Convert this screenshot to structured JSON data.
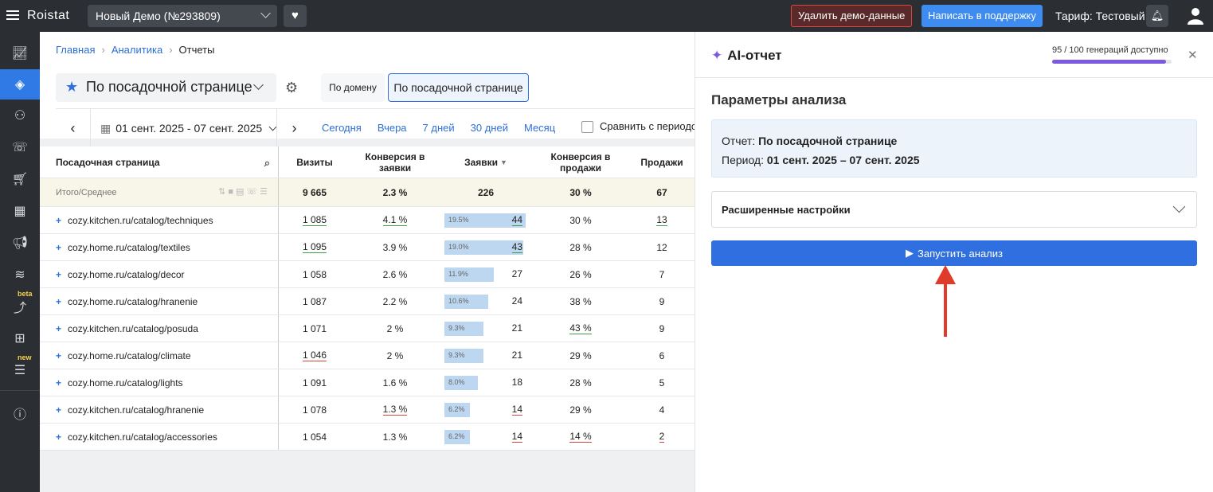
{
  "topbar": {
    "logo": "Roistat",
    "project": "Новый Демо (№293809)",
    "delete_demo": "Удалить демо-данные",
    "support": "Написать в поддержку",
    "tariff": "Тариф: Тестовый"
  },
  "sidebar": {
    "badges": {
      "beta": "beta",
      "new": "new"
    }
  },
  "breadcrumb": {
    "home": "Главная",
    "analytics": "Аналитика",
    "current": "Отчеты"
  },
  "report": {
    "selected": "По посадочной странице",
    "segments": [
      "По домену",
      "По посадочной странице"
    ]
  },
  "dates": {
    "range": "01 сент. 2025 - 07 сент. 2025",
    "quick": [
      "Сегодня",
      "Вчера",
      "7 дней",
      "30 дней",
      "Месяц"
    ],
    "compare": "Сравнить с периодом"
  },
  "table": {
    "headers": {
      "page": "Посадочная страница",
      "visits": "Визиты",
      "conv": "Конверсия в заявки",
      "req": "Заявки",
      "conv_sales": "Конверсия в продажи",
      "sales": "Продажи"
    },
    "total": {
      "label": "Итого/Среднее",
      "visits": "9 665",
      "conv": "2.3 %",
      "req": "226",
      "conv_sales": "30 %",
      "sales": "67"
    },
    "rows": [
      {
        "page": "cozy.kitchen.ru/catalog/techniques",
        "visits": "1 085",
        "conv": "4.1 %",
        "req_pct": "19.5%",
        "req_share": 0.195,
        "req": "44",
        "conv_sales": "30 %",
        "sales": "13"
      },
      {
        "page": "cozy.home.ru/catalog/textiles",
        "visits": "1 095",
        "conv": "3.9 %",
        "req_pct": "19.0%",
        "req_share": 0.19,
        "req": "43",
        "conv_sales": "28 %",
        "sales": "12"
      },
      {
        "page": "cozy.home.ru/catalog/decor",
        "visits": "1 058",
        "conv": "2.6 %",
        "req_pct": "11.9%",
        "req_share": 0.119,
        "req": "27",
        "conv_sales": "26 %",
        "sales": "7"
      },
      {
        "page": "cozy.home.ru/catalog/hranenie",
        "visits": "1 087",
        "conv": "2.2 %",
        "req_pct": "10.6%",
        "req_share": 0.106,
        "req": "24",
        "conv_sales": "38 %",
        "sales": "9"
      },
      {
        "page": "cozy.kitchen.ru/catalog/posuda",
        "visits": "1 071",
        "conv": "2 %",
        "req_pct": "9.3%",
        "req_share": 0.093,
        "req": "21",
        "conv_sales": "43 %",
        "sales": "9"
      },
      {
        "page": "cozy.home.ru/catalog/climate",
        "visits": "1 046",
        "conv": "2 %",
        "req_pct": "9.3%",
        "req_share": 0.093,
        "req": "21",
        "conv_sales": "29 %",
        "sales": "6"
      },
      {
        "page": "cozy.home.ru/catalog/lights",
        "visits": "1 091",
        "conv": "1.6 %",
        "req_pct": "8.0%",
        "req_share": 0.08,
        "req": "18",
        "conv_sales": "28 %",
        "sales": "5"
      },
      {
        "page": "cozy.kitchen.ru/catalog/hranenie",
        "visits": "1 078",
        "conv": "1.3 %",
        "req_pct": "6.2%",
        "req_share": 0.062,
        "req": "14",
        "conv_sales": "29 %",
        "sales": "4"
      },
      {
        "page": "cozy.kitchen.ru/catalog/accessories",
        "visits": "1 054",
        "conv": "1.3 %",
        "req_pct": "6.2%",
        "req_share": 0.062,
        "req": "14",
        "conv_sales": "14 %",
        "sales": "2"
      }
    ]
  },
  "panel": {
    "title": "AI-отчет",
    "quota": "95 / 100 генераций доступно",
    "quota_fraction": 0.95,
    "section": "Параметры анализа",
    "report_label": "Отчет:",
    "report_value": "По посадочной странице",
    "period_label": "Период:",
    "period_value": "01 сент. 2025 – 07 сент. 2025",
    "advanced": "Расширенные настройки",
    "run": "Запустить анализ"
  },
  "colors": {
    "accent": "#2f6fe0",
    "ai": "#7a5be0",
    "arrow": "#e03a2a"
  }
}
